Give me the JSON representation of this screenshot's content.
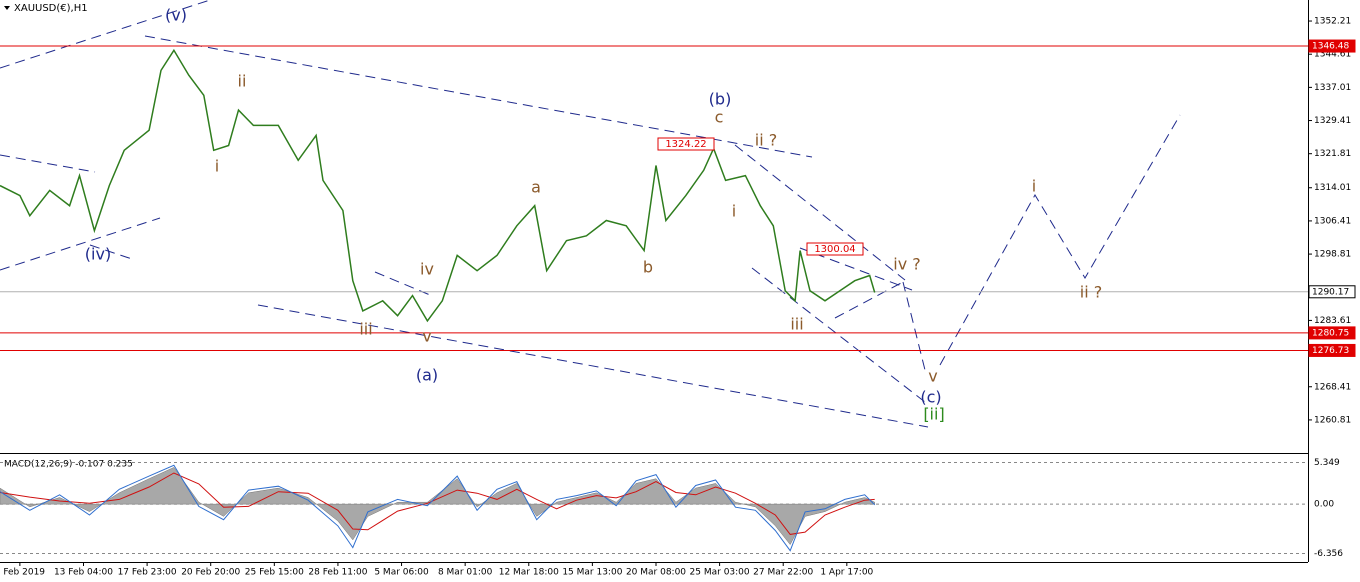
{
  "header": {
    "symbol": "XAUUSD(€),H1"
  },
  "chart_data": [
    {
      "type": "line",
      "x": [
        -20,
        0,
        10,
        30,
        50,
        60,
        75,
        90,
        105,
        130,
        142,
        155,
        170,
        185,
        195,
        210,
        220,
        235,
        260,
        280,
        298,
        305,
        325,
        335,
        345,
        365,
        380,
        395,
        410,
        425,
        440,
        460,
        480,
        500,
        518,
        530,
        550,
        570,
        590,
        610,
        628,
        640,
        650,
        670,
        688,
        698,
        710,
        730,
        745,
        758,
        770,
        780,
        785,
        795,
        810,
        825,
        840,
        855,
        860
      ],
      "values": [
        1314.5,
        1312.2,
        1307.6,
        1313.4,
        1309.9,
        1316.8,
        1304.2,
        1314.5,
        1322.6,
        1327.2,
        1340.9,
        1345.5,
        1339.8,
        1335.2,
        1322.6,
        1323.7,
        1331.8,
        1328.3,
        1328.3,
        1320.3,
        1326.0,
        1315.7,
        1308.8,
        1292.7,
        1285.8,
        1288.1,
        1284.7,
        1289.3,
        1283.5,
        1288.1,
        1298.5,
        1295.0,
        1298.5,
        1305.3,
        1309.9,
        1295.0,
        1301.9,
        1303.0,
        1306.5,
        1305.3,
        1299.6,
        1319.1,
        1306.5,
        1312.2,
        1318.0,
        1323.0,
        1315.7,
        1316.8,
        1309.9,
        1305.3,
        1290.4,
        1288.1,
        1299.6,
        1290.4,
        1288.1,
        1290.4,
        1292.7,
        1293.9,
        1290.0
      ],
      "color": "#2f7d1e",
      "xlim": [
        -20,
        1296
      ],
      "xticks": [
        {
          "value": 0,
          "label": "8 Feb 2019"
        },
        {
          "value": 64,
          "label": "13 Feb 04:00"
        },
        {
          "value": 128,
          "label": "17 Feb 23:00"
        },
        {
          "value": 192,
          "label": "20 Feb 20:00"
        },
        {
          "value": 256,
          "label": "25 Feb 15:00"
        },
        {
          "value": 320,
          "label": "28 Feb 11:00"
        },
        {
          "value": 384,
          "label": "5 Mar 06:00"
        },
        {
          "value": 448,
          "label": "8 Mar 01:00"
        },
        {
          "value": 512,
          "label": "12 Mar 18:00"
        },
        {
          "value": 576,
          "label": "15 Mar 13:00"
        },
        {
          "value": 640,
          "label": "20 Mar 08:00"
        },
        {
          "value": 704,
          "label": "25 Mar 03:00"
        },
        {
          "value": 768,
          "label": "27 Mar 22:00"
        },
        {
          "value": 832,
          "label": "1 Apr 17:00"
        }
      ],
      "ylim": [
        1253.23,
        1357.03
      ],
      "yticks": [
        1352.21,
        1344.61,
        1337.01,
        1329.41,
        1321.81,
        1314.01,
        1306.41,
        1298.81,
        1283.61,
        1268.41,
        1260.81
      ],
      "levels": [
        {
          "value": 1346.48,
          "color": "#e00000"
        },
        {
          "value": 1290.17,
          "color": "#b0b0b0"
        },
        {
          "value": 1280.75,
          "color": "#e00000"
        },
        {
          "value": 1276.73,
          "color": "#e00000"
        }
      ],
      "annotations": [
        "(v)",
        "ii",
        "i",
        "(iv)",
        "iii",
        "iv",
        "v",
        "(a)",
        "a",
        "b",
        "(b)",
        "c",
        "ii ?",
        "i",
        "iii",
        "iv ?",
        "v",
        "(c)",
        "[ii]",
        "i",
        "ii ?",
        "1324.22",
        "1300.04"
      ]
    },
    {
      "type": "macd",
      "title": "MACD(12,26,9) -0.107 0.235",
      "x": [
        -20,
        10,
        40,
        70,
        100,
        130,
        155,
        180,
        205,
        230,
        260,
        290,
        320,
        335,
        350,
        380,
        410,
        440,
        460,
        480,
        500,
        520,
        540,
        560,
        580,
        600,
        620,
        640,
        660,
        680,
        700,
        720,
        740,
        760,
        775,
        790,
        810,
        830,
        850,
        860
      ],
      "series": [
        {
          "color": "#a8a8a8",
          "values": [
            2.06,
            -0.36,
            0.85,
            -0.97,
            1.45,
            3.27,
            4.73,
            0.24,
            -1.58,
            1.45,
            2.06,
            0.85,
            -2.18,
            -4.61,
            -1.58,
            0.24,
            0.24,
            3.27,
            -0.36,
            1.45,
            2.67,
            -1.58,
            0.24,
            0.85,
            1.45,
            0.24,
            2.67,
            3.27,
            0.24,
            2.06,
            2.67,
            0.24,
            -0.36,
            -2.79,
            -5.21,
            -1.58,
            -0.97,
            0.24,
            0.85,
            0.24
          ]
        },
        {
          "color": "#d01010",
          "values": [
            1.5,
            0.9,
            0.4,
            0.1,
            0.6,
            2.2,
            4.0,
            2.6,
            -0.4,
            -0.3,
            1.6,
            1.4,
            -0.8,
            -3.2,
            -3.3,
            -0.9,
            0.1,
            1.8,
            1.4,
            0.6,
            1.9,
            0.6,
            -0.6,
            0.5,
            1.1,
            0.8,
            1.6,
            2.9,
            1.5,
            1.2,
            2.2,
            1.4,
            0.1,
            -1.4,
            -3.9,
            -3.6,
            -1.4,
            -0.4,
            0.5,
            0.6
          ]
        },
        {
          "color": "#2f6fcf",
          "values": [
            1.6,
            -0.8,
            1.2,
            -1.4,
            1.9,
            3.6,
            5.0,
            -0.3,
            -2.0,
            1.8,
            2.3,
            0.5,
            -2.8,
            -5.6,
            -1.0,
            0.6,
            -0.2,
            3.6,
            -0.8,
            1.9,
            2.9,
            -2.0,
            0.6,
            1.1,
            1.7,
            -0.2,
            3.0,
            3.8,
            -0.4,
            2.4,
            3.1,
            -0.4,
            -0.8,
            -3.4,
            -6.0,
            -1.0,
            -0.6,
            0.6,
            1.2,
            -0.1
          ]
        }
      ],
      "ylim": [
        -7.45,
        6.32
      ],
      "yticks": [
        5.349,
        {
          "value": 0,
          "label": "0.00"
        },
        -6.356
      ]
    }
  ]
}
